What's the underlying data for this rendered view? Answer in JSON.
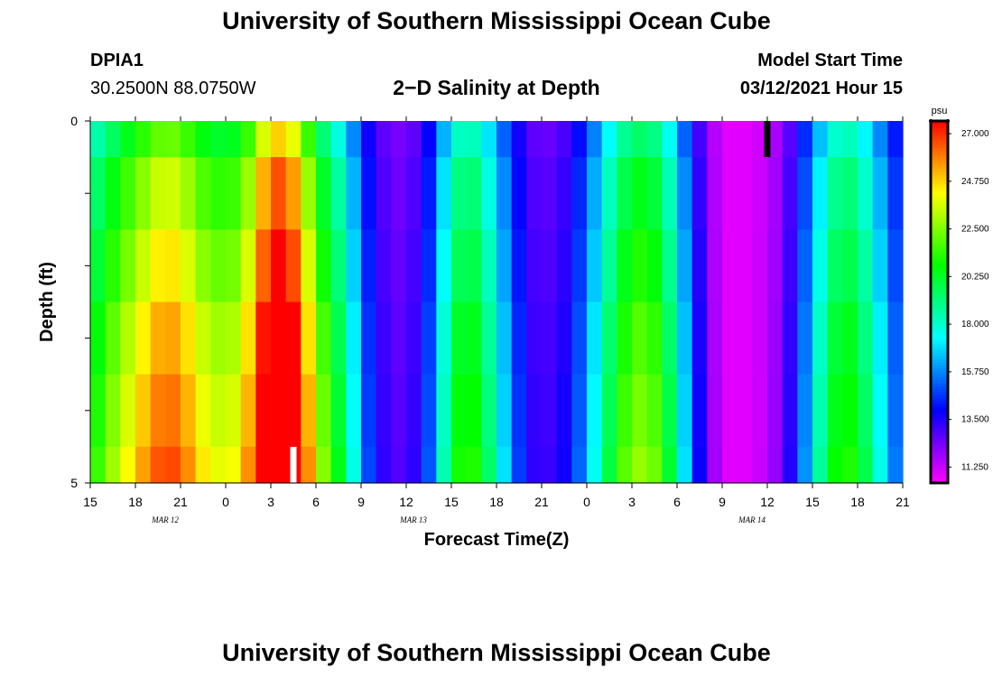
{
  "page_title": "University of Southern Mississippi Ocean Cube",
  "footer_title": "University of Southern Mississippi Ocean Cube",
  "station": {
    "id": "DPIA1",
    "coords": "30.2500N 88.0750W"
  },
  "model": {
    "start_label": "Model Start Time",
    "start_value": "03/12/2021 Hour 15"
  },
  "colors": {
    "black": "#000000",
    "current_time_marker": "#ffffff",
    "model_start_marker": "#000000"
  },
  "chart_data": {
    "type": "heatmap",
    "title": "2−D Salinity at Depth",
    "xlabel": "Forecast Time(Z)",
    "ylabel": "Depth (ft)",
    "ylim": [
      0,
      5
    ],
    "y_tick_labels": [
      "0",
      "5"
    ],
    "x_tick_labels": [
      "15",
      "18",
      "21",
      "0",
      "3",
      "6",
      "9",
      "12",
      "15",
      "18",
      "21",
      "0",
      "3",
      "6",
      "9",
      "12",
      "15",
      "18",
      "21"
    ],
    "date_labels": [
      {
        "text": "MAR 12",
        "tick_index": 1.5
      },
      {
        "text": "MAR 13",
        "tick_index": 7
      },
      {
        "text": "MAR 14",
        "tick_index": 14.5
      }
    ],
    "time_range_hours": [
      0,
      54
    ],
    "depth_rows_ft": [
      0.0,
      0.5,
      1.5,
      2.5,
      3.5,
      4.5
    ],
    "colorbar": {
      "unit": "psu",
      "range": [
        10.5,
        27.6
      ],
      "tick_labels": [
        "27.000",
        "24.750",
        "22.500",
        "20.250",
        "18.000",
        "15.750",
        "13.500",
        "11.250"
      ],
      "tick_values": [
        27.0,
        24.75,
        22.5,
        20.25,
        18.0,
        15.75,
        13.5,
        11.25
      ]
    },
    "surface_trend_keypoints": [
      [
        0,
        18.0
      ],
      [
        1,
        19.0
      ],
      [
        2,
        20.0
      ],
      [
        3,
        20.8
      ],
      [
        4,
        21.8
      ],
      [
        5,
        22.3
      ],
      [
        6,
        22.0
      ],
      [
        7,
        21.0
      ],
      [
        8,
        20.2
      ],
      [
        9,
        20.2
      ],
      [
        10,
        20.5
      ],
      [
        11,
        22.5
      ],
      [
        12,
        24.8
      ],
      [
        13,
        24.8
      ],
      [
        14,
        23.0
      ],
      [
        15,
        20.0
      ],
      [
        16,
        18.5
      ],
      [
        17,
        17.0
      ],
      [
        18,
        14.5
      ],
      [
        19,
        13.0
      ],
      [
        20,
        12.3
      ],
      [
        21,
        12.3
      ],
      [
        22,
        13.0
      ],
      [
        23,
        14.8
      ],
      [
        24,
        17.8
      ],
      [
        25,
        18.5
      ],
      [
        26,
        18.0
      ],
      [
        27,
        16.0
      ],
      [
        28,
        14.5
      ],
      [
        29,
        12.8
      ],
      [
        30,
        12.5
      ],
      [
        31,
        12.6
      ],
      [
        32,
        13.3
      ],
      [
        33,
        14.8
      ],
      [
        34,
        16.5
      ],
      [
        35,
        18.3
      ],
      [
        36,
        19.3
      ],
      [
        37,
        19.5
      ],
      [
        38,
        18.5
      ],
      [
        39,
        16.5
      ],
      [
        40,
        14.0
      ],
      [
        41,
        12.0
      ],
      [
        42,
        11.0
      ],
      [
        43,
        10.8
      ],
      [
        44,
        11.0
      ],
      [
        45,
        11.3
      ],
      [
        46,
        12.0
      ],
      [
        47,
        13.5
      ],
      [
        48,
        15.5
      ],
      [
        49,
        17.5
      ],
      [
        50,
        18.5
      ],
      [
        51,
        18.0
      ],
      [
        52,
        16.5
      ],
      [
        53,
        15.0
      ],
      [
        54,
        13.5
      ]
    ],
    "depth_increments_psu": [
      0,
      1.5,
      2.5,
      3.5,
      4.2,
      4.8
    ],
    "current_time_marker_hour": 13.5,
    "model_start_marker_hour": 45
  }
}
